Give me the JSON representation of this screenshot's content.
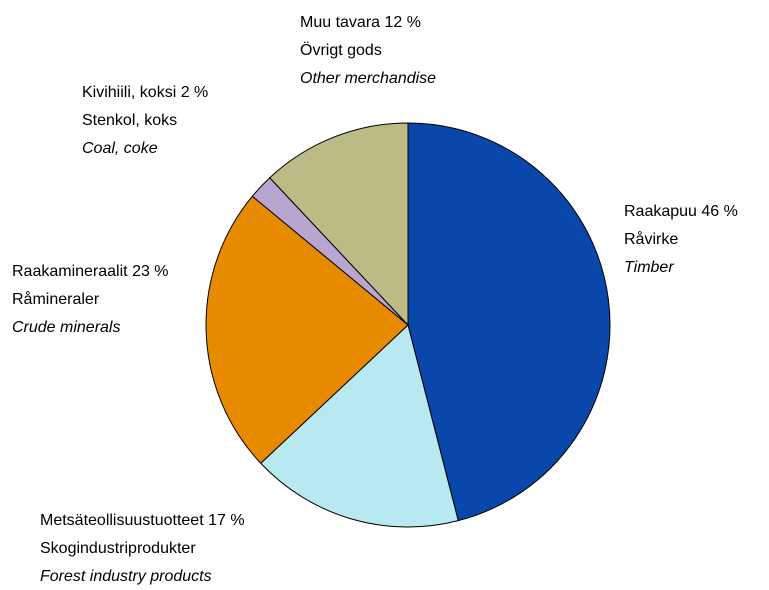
{
  "chart_data": {
    "type": "pie",
    "categories": [
      "Raakapuu",
      "Metsäteollisuustuotteet",
      "Raakamineraalit",
      "Kivihiili, koksi",
      "Muu tavara"
    ],
    "categories_sv": [
      "Råvirke",
      "Skogindustriprodukter",
      "Råmineraler",
      "Stenkol, koks",
      "Övrigt gods"
    ],
    "categories_en": [
      "Timber",
      "Forest industry products",
      "Crude minerals",
      "Coal, coke",
      "Other merchandise"
    ],
    "values": [
      46,
      17,
      23,
      2,
      12
    ],
    "value_labels": [
      "46 %",
      "17 %",
      "23 %",
      "2 %",
      "12 %"
    ],
    "colors": [
      "#0a47aa",
      "#b8e8f0",
      "#e88a00",
      "#b9a6d0",
      "#bdbb85"
    ]
  }
}
